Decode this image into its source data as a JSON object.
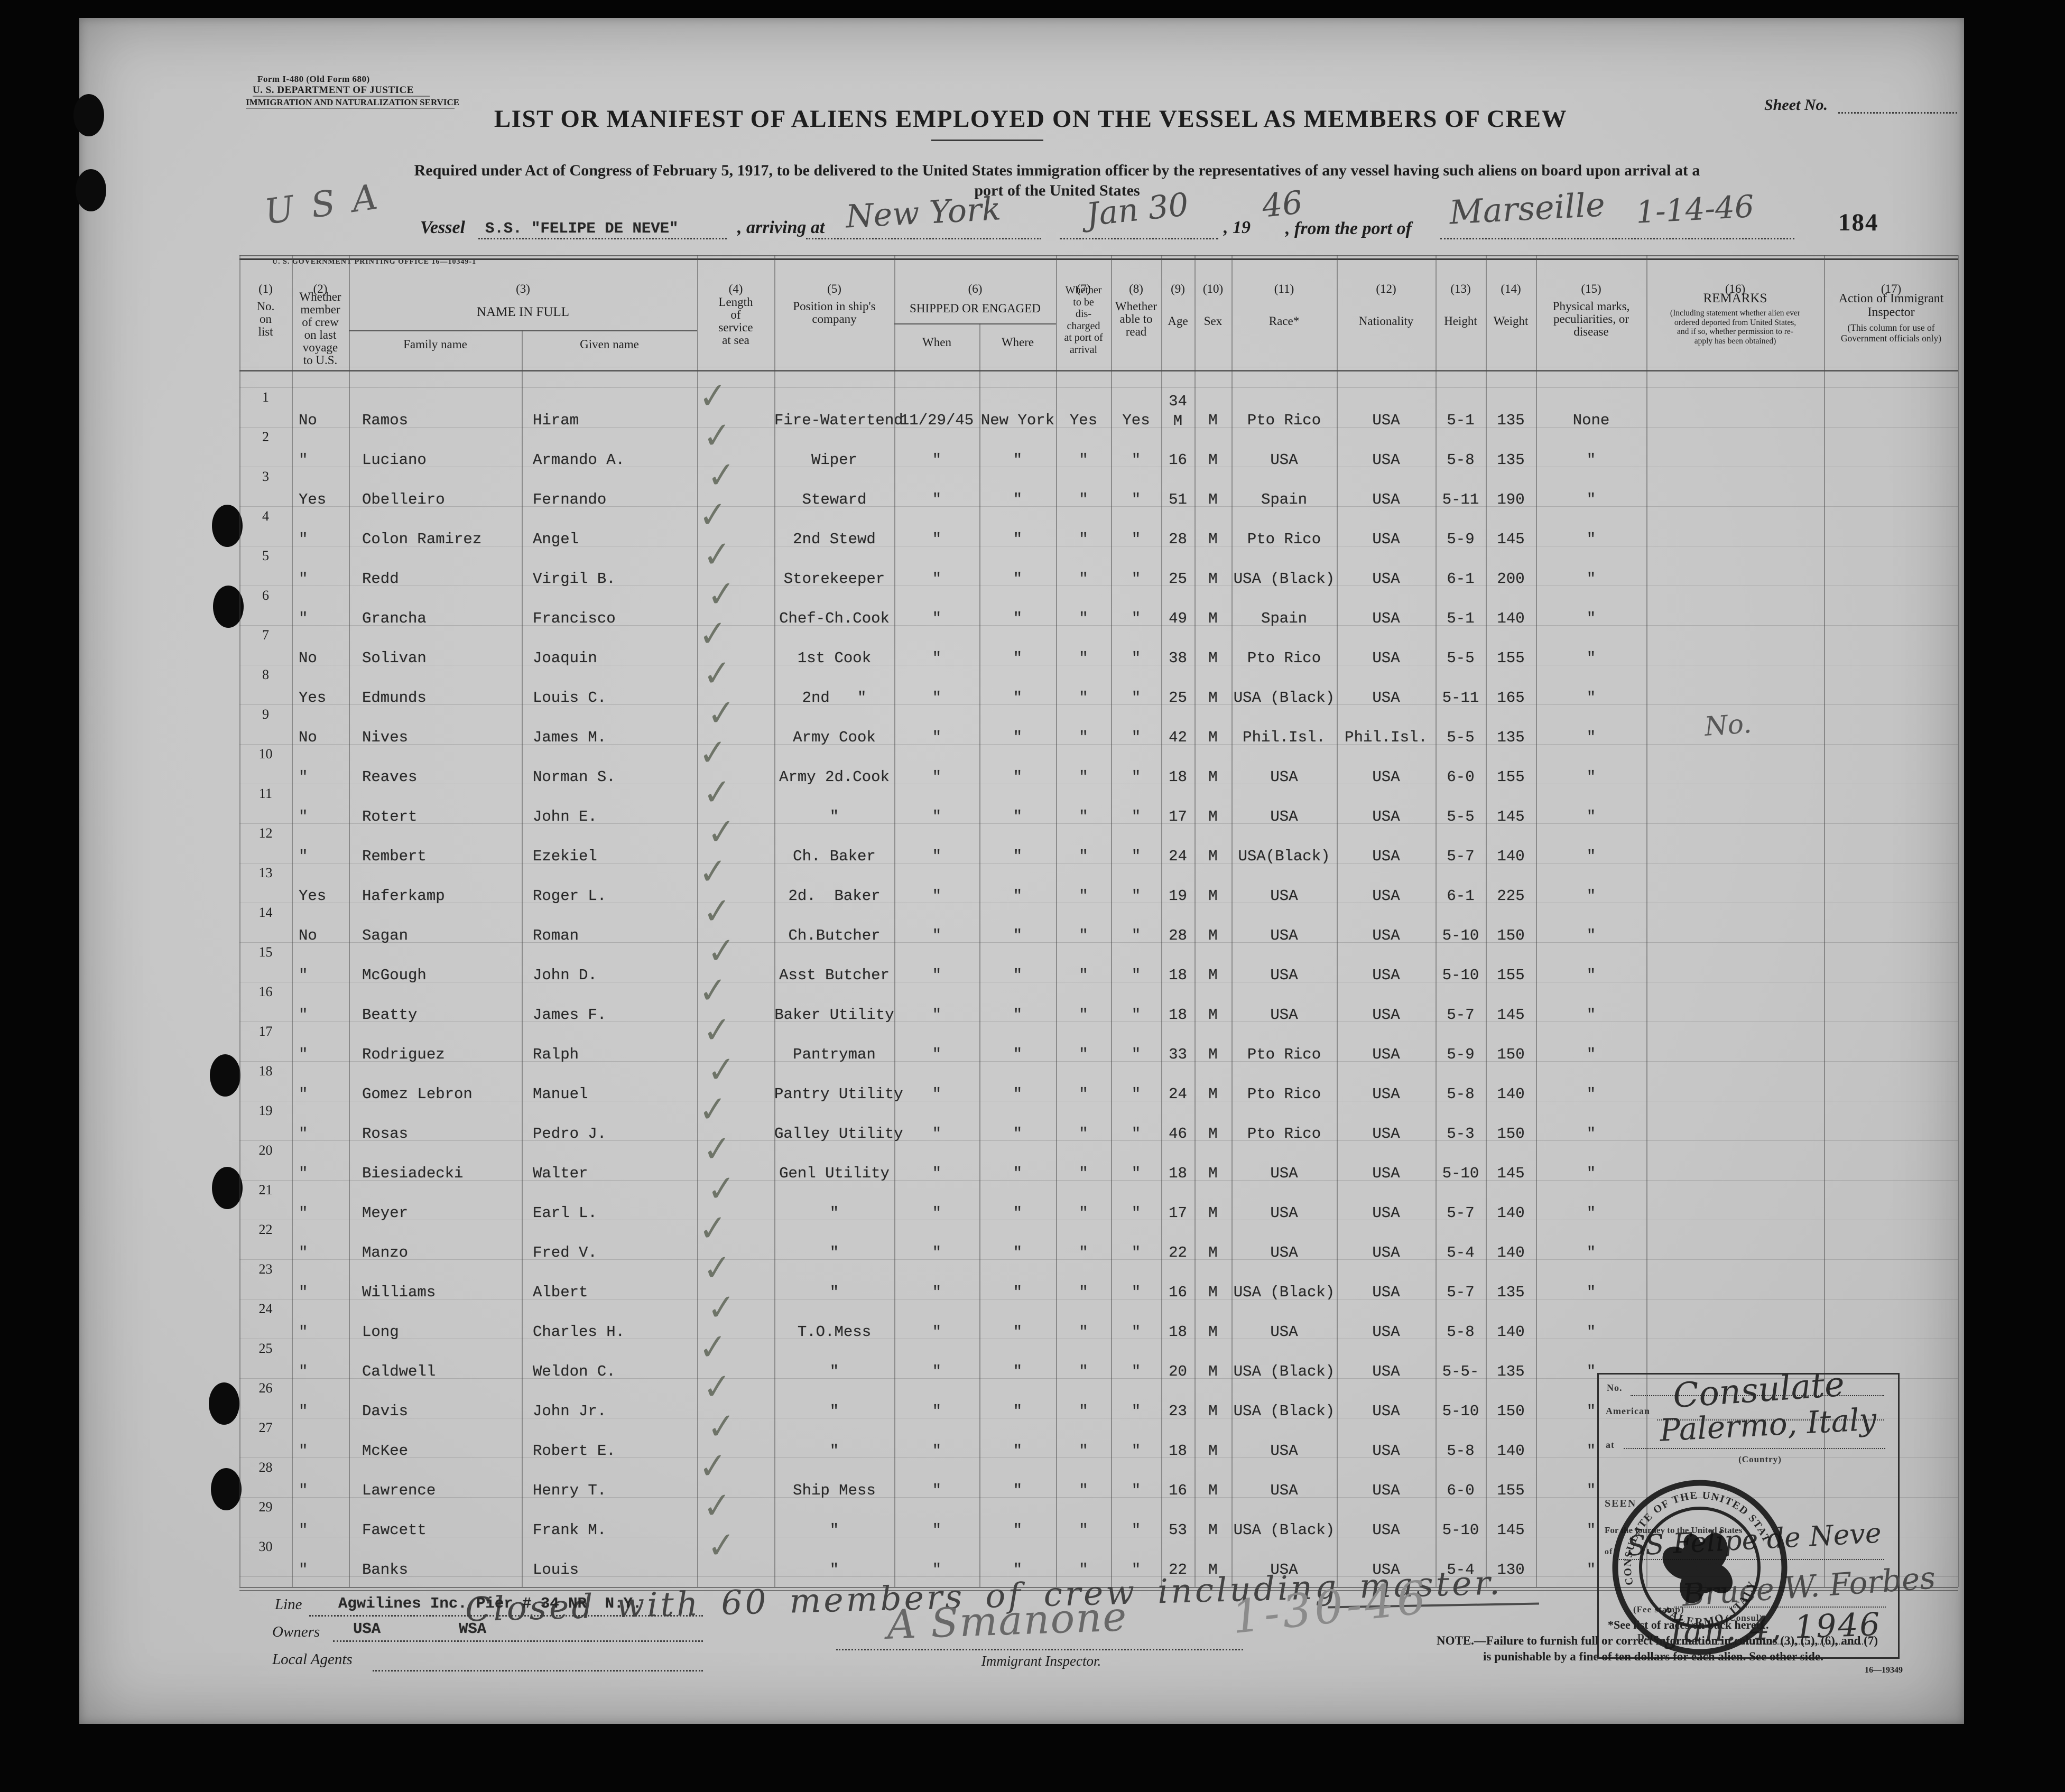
{
  "form": {
    "line1": "Form I-480 (Old Form 680)",
    "line2": "U. S. DEPARTMENT OF JUSTICE",
    "line3": "IMMIGRATION AND NATURALIZATION SERVICE"
  },
  "sheet_no_label": "Sheet No.",
  "page_stamp": "184",
  "title": "LIST OR MANIFEST OF ALIENS EMPLOYED ON THE VESSEL AS MEMBERS OF CREW",
  "subtitle_line1": "Required under Act of Congress of February 5, 1917, to be delivered to the United States immigration officer by the representatives of any vessel having such aliens on board upon arrival at a",
  "subtitle_line2": "port of the United States",
  "printing_office": "U. S. GOVERNMENT PRINTING OFFICE   16—10349-1",
  "vessel_line": {
    "usa_scrawl": "U S A",
    "vessel_label": "Vessel",
    "vessel_name": "S.S. \"FELIPE DE NEVE\"",
    "arriving_label": ", arriving at",
    "port_of_arrival": "New York",
    "arrival_date_written": "Jan 30",
    "year_label": ", 19",
    "year_written": "46",
    "from_port_label": ", from the port of",
    "port_of_departure": "Marseille",
    "departure_date_written": "1-14-46"
  },
  "columns": [
    {
      "num": "(1)",
      "lines": [
        "No.",
        "on",
        "list"
      ]
    },
    {
      "num": "(2)",
      "lines": [
        "Whether",
        "member",
        "of crew",
        "on last",
        "voyage",
        "to U.S."
      ]
    },
    {
      "num": "(3)",
      "title": "NAME IN FULL",
      "sub1": "Family name",
      "sub2": "Given name"
    },
    {
      "num": "(4)",
      "lines": [
        "Length",
        "of",
        "service",
        "at sea"
      ]
    },
    {
      "num": "(5)",
      "lines": [
        "Position in ship's",
        "company"
      ]
    },
    {
      "num": "(6)",
      "title": "SHIPPED OR ENGAGED",
      "sub1": "When",
      "sub2": "Where"
    },
    {
      "num": "(7)",
      "lines": [
        "Whether",
        "to be",
        "dis-",
        "charged",
        "at port of",
        "arrival"
      ]
    },
    {
      "num": "(8)",
      "lines": [
        "Whether",
        "able to",
        "read"
      ]
    },
    {
      "num": "(9)",
      "lines": [
        "Age"
      ]
    },
    {
      "num": "(10)",
      "lines": [
        "Sex"
      ]
    },
    {
      "num": "(11)",
      "lines": [
        "Race*"
      ]
    },
    {
      "num": "(12)",
      "lines": [
        "Nationality"
      ]
    },
    {
      "num": "(13)",
      "lines": [
        "Height"
      ]
    },
    {
      "num": "(14)",
      "lines": [
        "Weight"
      ]
    },
    {
      "num": "(15)",
      "lines": [
        "Physical marks,",
        "peculiarities, or",
        "disease"
      ]
    },
    {
      "num": "(16)",
      "title": "REMARKS",
      "lines": [
        "(Including statement whether alien ever",
        "ordered deported from United States,",
        "and if so, whether permission to re-",
        "apply has been obtained)"
      ]
    },
    {
      "num": "(17)",
      "title": "Action of Immigrant",
      "title2": "Inspector",
      "lines": [
        "(This column for use of",
        "Government officials only)"
      ]
    }
  ],
  "rows": [
    {
      "n": "1",
      "m": "No",
      "f": "Ramos",
      "g": "Hiram",
      "pos": "Fire-Watertend",
      "when": "11/29/45",
      "where": "New York",
      "dis": "Yes",
      "read": "Yes",
      "age": "34\nM",
      "sex": "M",
      "race": "Pto Rico",
      "nat": "USA",
      "ht": "5-1",
      "wt": "135",
      "marks": "None",
      "rem": ""
    },
    {
      "n": "2",
      "m": "\"",
      "f": "Luciano",
      "g": "Armando A.",
      "pos": "Wiper",
      "when": "\"",
      "where": "\"",
      "dis": "\"",
      "read": "\"",
      "age": "16",
      "sex": "M",
      "race": "USA",
      "nat": "USA",
      "ht": "5-8",
      "wt": "135",
      "marks": "\"",
      "rem": ""
    },
    {
      "n": "3",
      "m": "Yes",
      "f": "Obelleiro",
      "g": "Fernando",
      "pos": "Steward",
      "when": "\"",
      "where": "\"",
      "dis": "\"",
      "read": "\"",
      "age": "51",
      "sex": "M",
      "race": "Spain",
      "nat": "USA",
      "ht": "5-11",
      "wt": "190",
      "marks": "\"",
      "rem": ""
    },
    {
      "n": "4",
      "m": "\"",
      "f": "Colon Ramirez",
      "g": "Angel",
      "pos": "2nd Stewd",
      "when": "\"",
      "where": "\"",
      "dis": "\"",
      "read": "\"",
      "age": "28",
      "sex": "M",
      "race": "Pto Rico",
      "nat": "USA",
      "ht": "5-9",
      "wt": "145",
      "marks": "\"",
      "rem": ""
    },
    {
      "n": "5",
      "m": "\"",
      "f": "Redd",
      "g": "Virgil B.",
      "pos": "Storekeeper",
      "when": "\"",
      "where": "\"",
      "dis": "\"",
      "read": "\"",
      "age": "25",
      "sex": "M",
      "race": "USA (Black)",
      "nat": "USA",
      "ht": "6-1",
      "wt": "200",
      "marks": "\"",
      "rem": ""
    },
    {
      "n": "6",
      "m": "\"",
      "f": "Grancha",
      "g": "Francisco",
      "pos": "Chef-Ch.Cook",
      "when": "\"",
      "where": "\"",
      "dis": "\"",
      "read": "\"",
      "age": "49",
      "sex": "M",
      "race": "Spain",
      "nat": "USA",
      "ht": "5-1",
      "wt": "140",
      "marks": "\"",
      "rem": ""
    },
    {
      "n": "7",
      "m": "No",
      "f": "Solivan",
      "g": "Joaquin",
      "pos": "1st Cook",
      "when": "\"",
      "where": "\"",
      "dis": "\"",
      "read": "\"",
      "age": "38",
      "sex": "M",
      "race": "Pto Rico",
      "nat": "USA",
      "ht": "5-5",
      "wt": "155",
      "marks": "\"",
      "rem": ""
    },
    {
      "n": "8",
      "m": "Yes",
      "f": "Edmunds",
      "g": "Louis C.",
      "pos": "2nd   \"",
      "when": "\"",
      "where": "\"",
      "dis": "\"",
      "read": "\"",
      "age": "25",
      "sex": "M",
      "race": "USA (Black)",
      "nat": "USA",
      "ht": "5-11",
      "wt": "165",
      "marks": "\"",
      "rem": ""
    },
    {
      "n": "9",
      "m": "No",
      "f": "Nives",
      "g": "James M.",
      "pos": "Army Cook",
      "when": "\"",
      "where": "\"",
      "dis": "\"",
      "read": "\"",
      "age": "42",
      "sex": "M",
      "race": "Phil.Isl.",
      "nat": "Phil.Isl.",
      "ht": "5-5",
      "wt": "135",
      "marks": "\"",
      "rem": "No."
    },
    {
      "n": "10",
      "m": "\"",
      "f": "Reaves",
      "g": "Norman S.",
      "pos": "Army 2d.Cook",
      "when": "\"",
      "where": "\"",
      "dis": "\"",
      "read": "\"",
      "age": "18",
      "sex": "M",
      "race": "USA",
      "nat": "USA",
      "ht": "6-0",
      "wt": "155",
      "marks": "\"",
      "rem": ""
    },
    {
      "n": "11",
      "m": "\"",
      "f": "Rotert",
      "g": "John E.",
      "pos": "\"",
      "when": "\"",
      "where": "\"",
      "dis": "\"",
      "read": "\"",
      "age": "17",
      "sex": "M",
      "race": "USA",
      "nat": "USA",
      "ht": "5-5",
      "wt": "145",
      "marks": "\"",
      "rem": ""
    },
    {
      "n": "12",
      "m": "\"",
      "f": "Rembert",
      "g": "Ezekiel",
      "pos": "Ch. Baker",
      "when": "\"",
      "where": "\"",
      "dis": "\"",
      "read": "\"",
      "age": "24",
      "sex": "M",
      "race": "USA(Black)",
      "nat": "USA",
      "ht": "5-7",
      "wt": "140",
      "marks": "\"",
      "rem": ""
    },
    {
      "n": "13",
      "m": "Yes",
      "f": "Haferkamp",
      "g": "Roger L.",
      "pos": "2d.  Baker",
      "when": "\"",
      "where": "\"",
      "dis": "\"",
      "read": "\"",
      "age": "19",
      "sex": "M",
      "race": "USA",
      "nat": "USA",
      "ht": "6-1",
      "wt": "225",
      "marks": "\"",
      "rem": ""
    },
    {
      "n": "14",
      "m": "No",
      "f": "Sagan",
      "g": "Roman",
      "pos": "Ch.Butcher",
      "when": "\"",
      "where": "\"",
      "dis": "\"",
      "read": "\"",
      "age": "28",
      "sex": "M",
      "race": "USA",
      "nat": "USA",
      "ht": "5-10",
      "wt": "150",
      "marks": "\"",
      "rem": ""
    },
    {
      "n": "15",
      "m": "\"",
      "f": "McGough",
      "g": "John D.",
      "pos": "Asst Butcher",
      "when": "\"",
      "where": "\"",
      "dis": "\"",
      "read": "\"",
      "age": "18",
      "sex": "M",
      "race": "USA",
      "nat": "USA",
      "ht": "5-10",
      "wt": "155",
      "marks": "\"",
      "rem": ""
    },
    {
      "n": "16",
      "m": "\"",
      "f": "Beatty",
      "g": "James F.",
      "pos": "Baker Utility",
      "when": "\"",
      "where": "\"",
      "dis": "\"",
      "read": "\"",
      "age": "18",
      "sex": "M",
      "race": "USA",
      "nat": "USA",
      "ht": "5-7",
      "wt": "145",
      "marks": "\"",
      "rem": ""
    },
    {
      "n": "17",
      "m": "\"",
      "f": "Rodriguez",
      "g": "Ralph",
      "pos": "Pantryman",
      "when": "\"",
      "where": "\"",
      "dis": "\"",
      "read": "\"",
      "age": "33",
      "sex": "M",
      "race": "Pto Rico",
      "nat": "USA",
      "ht": "5-9",
      "wt": "150",
      "marks": "\"",
      "rem": ""
    },
    {
      "n": "18",
      "m": "\"",
      "f": "Gomez Lebron",
      "g": "Manuel",
      "pos": "Pantry Utility",
      "when": "\"",
      "where": "\"",
      "dis": "\"",
      "read": "\"",
      "age": "24",
      "sex": "M",
      "race": "Pto Rico",
      "nat": "USA",
      "ht": "5-8",
      "wt": "140",
      "marks": "\"",
      "rem": ""
    },
    {
      "n": "19",
      "m": "\"",
      "f": "Rosas",
      "g": "Pedro J.",
      "pos": "Galley Utility",
      "when": "\"",
      "where": "\"",
      "dis": "\"",
      "read": "\"",
      "age": "46",
      "sex": "M",
      "race": "Pto Rico",
      "nat": "USA",
      "ht": "5-3",
      "wt": "150",
      "marks": "\"",
      "rem": ""
    },
    {
      "n": "20",
      "m": "\"",
      "f": "Biesiadecki",
      "g": "Walter",
      "pos": "Genl Utility",
      "when": "\"",
      "where": "\"",
      "dis": "\"",
      "read": "\"",
      "age": "18",
      "sex": "M",
      "race": "USA",
      "nat": "USA",
      "ht": "5-10",
      "wt": "145",
      "marks": "\"",
      "rem": ""
    },
    {
      "n": "21",
      "m": "\"",
      "f": "Meyer",
      "g": "Earl L.",
      "pos": "\"",
      "when": "\"",
      "where": "\"",
      "dis": "\"",
      "read": "\"",
      "age": "17",
      "sex": "M",
      "race": "USA",
      "nat": "USA",
      "ht": "5-7",
      "wt": "140",
      "marks": "\"",
      "rem": ""
    },
    {
      "n": "22",
      "m": "\"",
      "f": "Manzo",
      "g": "Fred V.",
      "pos": "\"",
      "when": "\"",
      "where": "\"",
      "dis": "\"",
      "read": "\"",
      "age": "22",
      "sex": "M",
      "race": "USA",
      "nat": "USA",
      "ht": "5-4",
      "wt": "140",
      "marks": "\"",
      "rem": ""
    },
    {
      "n": "23",
      "m": "\"",
      "f": "Williams",
      "g": "Albert",
      "pos": "\"",
      "when": "\"",
      "where": "\"",
      "dis": "\"",
      "read": "\"",
      "age": "16",
      "sex": "M",
      "race": "USA (Black)",
      "nat": "USA",
      "ht": "5-7",
      "wt": "135",
      "marks": "\"",
      "rem": ""
    },
    {
      "n": "24",
      "m": "\"",
      "f": "Long",
      "g": "Charles H.",
      "pos": "T.O.Mess",
      "when": "\"",
      "where": "\"",
      "dis": "\"",
      "read": "\"",
      "age": "18",
      "sex": "M",
      "race": "USA",
      "nat": "USA",
      "ht": "5-8",
      "wt": "140",
      "marks": "\"",
      "rem": ""
    },
    {
      "n": "25",
      "m": "\"",
      "f": "Caldwell",
      "g": "Weldon C.",
      "pos": "\"",
      "when": "\"",
      "where": "\"",
      "dis": "\"",
      "read": "\"",
      "age": "20",
      "sex": "M",
      "race": "USA (Black)",
      "nat": "USA",
      "ht": "5-5-",
      "wt": "135",
      "marks": "\"",
      "rem": ""
    },
    {
      "n": "26",
      "m": "\"",
      "f": "Davis",
      "g": "John Jr.",
      "pos": "\"",
      "when": "\"",
      "where": "\"",
      "dis": "\"",
      "read": "\"",
      "age": "23",
      "sex": "M",
      "race": "USA (Black)",
      "nat": "USA",
      "ht": "5-10",
      "wt": "150",
      "marks": "\"",
      "rem": ""
    },
    {
      "n": "27",
      "m": "\"",
      "f": "McKee",
      "g": "Robert E.",
      "pos": "\"",
      "when": "\"",
      "where": "\"",
      "dis": "\"",
      "read": "\"",
      "age": "18",
      "sex": "M",
      "race": "USA",
      "nat": "USA",
      "ht": "5-8",
      "wt": "140",
      "marks": "\"",
      "rem": ""
    },
    {
      "n": "28",
      "m": "\"",
      "f": "Lawrence",
      "g": "Henry T.",
      "pos": "Ship Mess",
      "when": "\"",
      "where": "\"",
      "dis": "\"",
      "read": "\"",
      "age": "16",
      "sex": "M",
      "race": "USA",
      "nat": "USA",
      "ht": "6-0",
      "wt": "155",
      "marks": "\"",
      "rem": ""
    },
    {
      "n": "29",
      "m": "\"",
      "f": "Fawcett",
      "g": "Frank M.",
      "pos": "\"",
      "when": "\"",
      "where": "\"",
      "dis": "\"",
      "read": "\"",
      "age": "53",
      "sex": "M",
      "race": "USA (Black)",
      "nat": "USA",
      "ht": "5-10",
      "wt": "145",
      "marks": "\"",
      "rem": ""
    },
    {
      "n": "30",
      "m": "\"",
      "f": "Banks",
      "g": "Louis",
      "pos": "\"",
      "when": "\"",
      "where": "\"",
      "dis": "\"",
      "read": "\"",
      "age": "22",
      "sex": "M",
      "race": "USA",
      "nat": "USA",
      "ht": "5-4",
      "wt": "130",
      "marks": "\"",
      "rem": ""
    }
  ],
  "closing_note": "Closed with 60 members of crew including master.",
  "footer": {
    "line_label": "Line",
    "line_value": "Agwilines Inc. Pier # 34 NR  N.Y.",
    "owners_label": "Owners",
    "owners_value1": "USA",
    "owners_value2": "WSA",
    "local_agents_label": "Local Agents",
    "inspector_signature": "A Smanone",
    "inspector_title": "Immigrant Inspector.",
    "inspection_date_written": "1-30-46"
  },
  "stamp_box": {
    "no_label": "No.",
    "american_label": "American",
    "consulate_written": "Consulate",
    "at_label": "at",
    "location_written": "Palermo, Italy",
    "country_label": "(Country)",
    "seen_label": "SEEN",
    "journey_label": "For the journey to the United States",
    "of_label": "of",
    "ship_written": "SS Felipe de Neve",
    "fee_stamp_label": "(Fee stamp)",
    "consul_written": "Bruce W. Forbes",
    "consul_label": "(Consul)",
    "date_label": "Date",
    "date_written": "Jan. 4, 1946"
  },
  "seal": {
    "text_top": "CONSULATE OF THE UNITED STATES OF AMERICA",
    "text_bottom": "PALERMO, ITALY"
  },
  "footnotes": {
    "races": "*See list of races on back hereof.",
    "note_line1": "NOTE.—Failure to furnish full or correct information in columns (3), (5), (6), and (7)",
    "note_line2": "is punishable by a fine of ten dollars for each alien.   See other side.",
    "print_code": "16—19349"
  }
}
